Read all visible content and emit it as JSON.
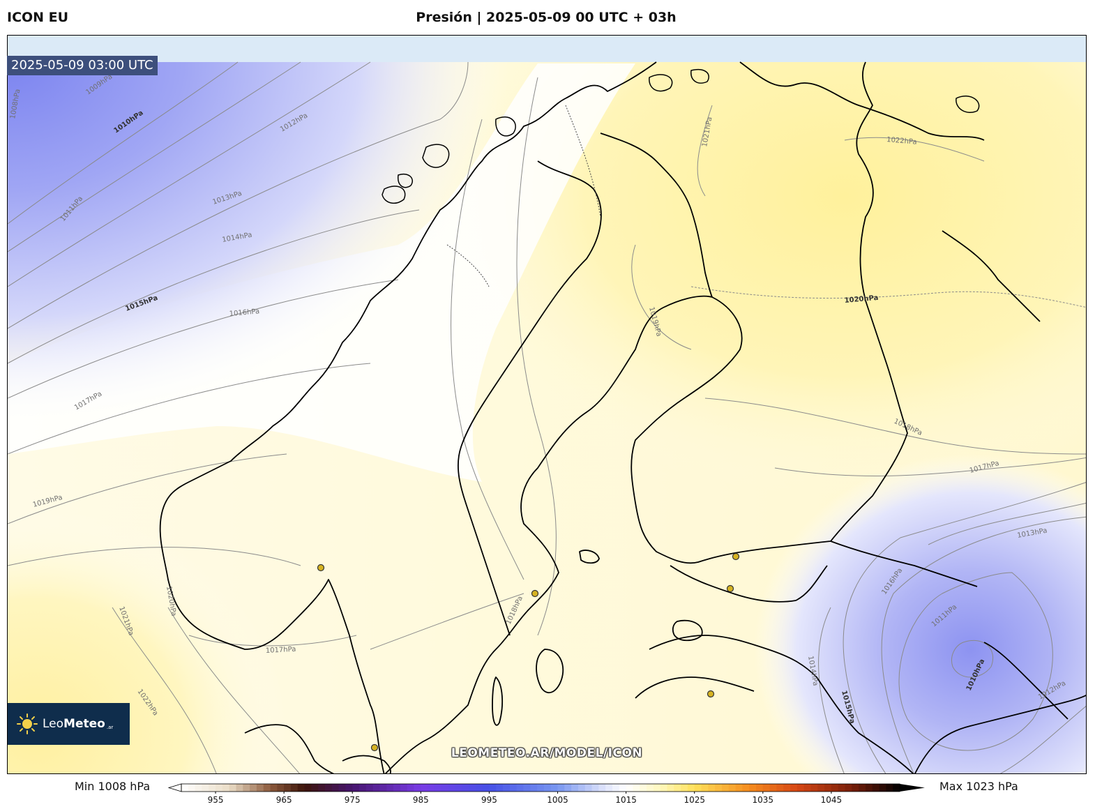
{
  "header": {
    "model": "ICON EU",
    "title": "Presión | 2025-05-09 00 UTC + 03h"
  },
  "map": {
    "valid_time": "2025-05-09 03:00 UTC",
    "watermark": "LEOMETEO.AR/MODEL/ICON",
    "logo": {
      "name_light": "Leo",
      "name_bold": "Meteo",
      "suffix": ".ar"
    },
    "isobar_labels": [
      {
        "id": "1008-nw",
        "text": "1008hPa"
      },
      {
        "id": "1009-nw",
        "text": "1009hPa"
      },
      {
        "id": "1010-nw",
        "text": "1010hPa"
      },
      {
        "id": "1011-nw",
        "text": "1011hPa"
      },
      {
        "id": "1012-nw",
        "text": "1012hPa"
      },
      {
        "id": "1013-nw",
        "text": "1013hPa"
      },
      {
        "id": "1014-nw",
        "text": "1014hPa"
      },
      {
        "id": "1015-w",
        "text": "1015hPa"
      },
      {
        "id": "1016-w",
        "text": "1016hPa"
      },
      {
        "id": "1017-w",
        "text": "1017hPa"
      },
      {
        "id": "1019-sw",
        "text": "1019hPa"
      },
      {
        "id": "1020-sw",
        "text": "1020hPa"
      },
      {
        "id": "1021-sw",
        "text": "1021hPa"
      },
      {
        "id": "1022-sw",
        "text": "1022hPa"
      },
      {
        "id": "1017-s",
        "text": "1017hPa"
      },
      {
        "id": "1018-s",
        "text": "1018hPa"
      },
      {
        "id": "1019-c",
        "text": "1019hPa"
      },
      {
        "id": "1021-n",
        "text": "1021hPa"
      },
      {
        "id": "1022-ne",
        "text": "1022hPa"
      },
      {
        "id": "1020-e",
        "text": "1020hPa"
      },
      {
        "id": "1018-e",
        "text": "1018hPa"
      },
      {
        "id": "1017-e",
        "text": "1017hPa"
      },
      {
        "id": "1013-se",
        "text": "1013hPa"
      },
      {
        "id": "1016-se",
        "text": "1016hPa"
      },
      {
        "id": "1011-se",
        "text": "1011hPa"
      },
      {
        "id": "1010-se",
        "text": "1010hPa"
      },
      {
        "id": "1012-se",
        "text": "1012hPa"
      },
      {
        "id": "1014-se",
        "text": "1014hPa"
      },
      {
        "id": "1015-se",
        "text": "1015hPa"
      }
    ]
  },
  "colorbar": {
    "min_label": "Min 1008 hPa",
    "max_label": "Max 1023 hPa",
    "ticks": [
      955,
      965,
      975,
      985,
      995,
      1005,
      1015,
      1025,
      1035,
      1045
    ],
    "range": [
      950,
      1055
    ]
  },
  "colors": {
    "low": "#7f86f2",
    "neutral": "#ffffff",
    "high": "#fff3a8",
    "coast": "#000000",
    "isobar": "#8a8a8a"
  }
}
